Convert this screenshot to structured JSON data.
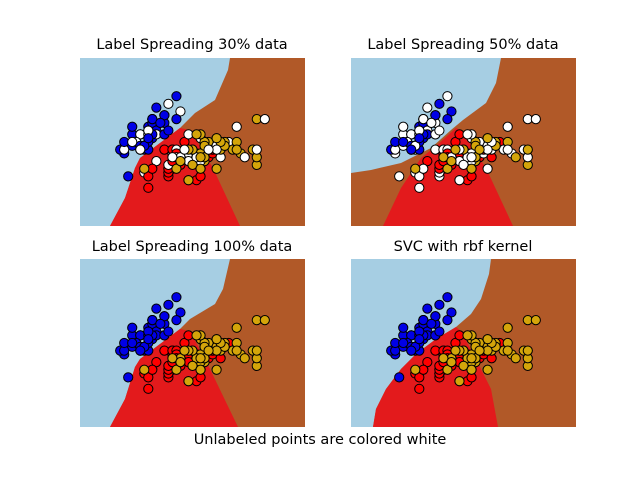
{
  "figure_caption": "Unlabeled points are colored white",
  "colors": {
    "region_class0": "#a6cee3",
    "region_class1": "#e31a1c",
    "region_class2": "#b15928",
    "point_class0": "#0000e6",
    "point_class1": "#ff0000",
    "point_class2": "#d4a50a",
    "unlabeled": "#ffffff"
  },
  "chart_data": [
    {
      "type": "scatter",
      "title": "Label Spreading 30% data",
      "unlabeled_fraction": 0.3,
      "xlim": [
        3.3,
        8.9
      ],
      "ylim": [
        1.0,
        5.4
      ],
      "grid": false,
      "axes_visible": false
    },
    {
      "type": "scatter",
      "title": "Label Spreading 50% data",
      "unlabeled_fraction": 0.5,
      "xlim": [
        3.3,
        8.9
      ],
      "ylim": [
        1.0,
        5.4
      ],
      "grid": false,
      "axes_visible": false
    },
    {
      "type": "scatter",
      "title": "Label Spreading 100% data",
      "unlabeled_fraction": 0.0,
      "xlim": [
        3.3,
        8.9
      ],
      "ylim": [
        1.0,
        5.4
      ],
      "grid": false,
      "axes_visible": false
    },
    {
      "type": "scatter",
      "title": "SVC with rbf kernel",
      "unlabeled_fraction": 0.0,
      "xlim": [
        3.3,
        8.9
      ],
      "ylim": [
        1.0,
        5.4
      ],
      "grid": false,
      "axes_visible": false
    }
  ],
  "points": {
    "class0": [
      [
        5.1,
        3.5
      ],
      [
        4.9,
        3.0
      ],
      [
        4.7,
        3.2
      ],
      [
        4.6,
        3.1
      ],
      [
        5.0,
        3.6
      ],
      [
        5.4,
        3.9
      ],
      [
        4.6,
        3.4
      ],
      [
        5.0,
        3.4
      ],
      [
        4.4,
        2.9
      ],
      [
        4.9,
        3.1
      ],
      [
        5.4,
        3.7
      ],
      [
        4.8,
        3.4
      ],
      [
        4.8,
        3.0
      ],
      [
        4.3,
        3.0
      ],
      [
        5.8,
        4.0
      ],
      [
        5.7,
        4.4
      ],
      [
        5.4,
        3.9
      ],
      [
        5.1,
        3.5
      ],
      [
        5.7,
        3.8
      ],
      [
        5.1,
        3.8
      ],
      [
        5.4,
        3.4
      ],
      [
        5.1,
        3.7
      ],
      [
        4.6,
        3.6
      ],
      [
        5.1,
        3.3
      ],
      [
        4.8,
        3.4
      ],
      [
        5.0,
        3.0
      ],
      [
        5.0,
        3.4
      ],
      [
        5.2,
        3.5
      ],
      [
        5.2,
        3.4
      ],
      [
        4.7,
        3.2
      ],
      [
        4.8,
        3.1
      ],
      [
        5.4,
        3.4
      ],
      [
        5.2,
        4.1
      ],
      [
        5.5,
        4.2
      ],
      [
        4.9,
        3.1
      ],
      [
        5.0,
        3.2
      ],
      [
        5.5,
        3.5
      ],
      [
        4.9,
        3.1
      ],
      [
        4.4,
        3.0
      ],
      [
        5.1,
        3.4
      ],
      [
        5.0,
        3.5
      ],
      [
        4.5,
        2.3
      ],
      [
        4.4,
        3.2
      ],
      [
        5.0,
        3.5
      ],
      [
        5.1,
        3.8
      ],
      [
        4.8,
        3.0
      ],
      [
        5.1,
        3.8
      ],
      [
        4.6,
        3.2
      ],
      [
        5.3,
        3.7
      ],
      [
        5.0,
        3.3
      ]
    ],
    "class1": [
      [
        7.0,
        3.2
      ],
      [
        6.4,
        3.2
      ],
      [
        6.9,
        3.1
      ],
      [
        5.5,
        2.3
      ],
      [
        6.5,
        2.8
      ],
      [
        5.7,
        2.8
      ],
      [
        6.3,
        3.3
      ],
      [
        4.9,
        2.4
      ],
      [
        6.6,
        2.9
      ],
      [
        5.2,
        2.7
      ],
      [
        5.0,
        2.0
      ],
      [
        5.9,
        3.0
      ],
      [
        6.0,
        2.2
      ],
      [
        6.1,
        2.9
      ],
      [
        5.6,
        2.9
      ],
      [
        6.7,
        3.1
      ],
      [
        5.6,
        3.0
      ],
      [
        5.8,
        2.7
      ],
      [
        6.2,
        2.2
      ],
      [
        5.6,
        2.5
      ],
      [
        5.9,
        3.2
      ],
      [
        6.1,
        2.8
      ],
      [
        6.3,
        2.5
      ],
      [
        6.1,
        2.8
      ],
      [
        6.4,
        2.9
      ],
      [
        6.6,
        3.0
      ],
      [
        6.8,
        2.8
      ],
      [
        6.7,
        3.0
      ],
      [
        6.0,
        2.9
      ],
      [
        5.7,
        2.6
      ],
      [
        5.5,
        2.4
      ],
      [
        5.5,
        2.4
      ],
      [
        5.8,
        2.7
      ],
      [
        6.0,
        2.7
      ],
      [
        5.4,
        3.0
      ],
      [
        6.0,
        3.4
      ],
      [
        6.7,
        3.1
      ],
      [
        6.3,
        2.3
      ],
      [
        5.6,
        3.0
      ],
      [
        5.5,
        2.5
      ],
      [
        5.5,
        2.6
      ],
      [
        6.1,
        3.0
      ],
      [
        5.8,
        2.6
      ],
      [
        5.0,
        2.3
      ],
      [
        5.6,
        2.7
      ],
      [
        5.7,
        3.0
      ],
      [
        5.7,
        2.9
      ],
      [
        6.2,
        2.9
      ],
      [
        5.1,
        2.5
      ],
      [
        5.7,
        2.8
      ]
    ],
    "class2": [
      [
        6.3,
        3.3
      ],
      [
        5.8,
        2.7
      ],
      [
        7.1,
        3.0
      ],
      [
        6.3,
        2.9
      ],
      [
        6.5,
        3.0
      ],
      [
        7.6,
        3.0
      ],
      [
        4.9,
        2.5
      ],
      [
        7.3,
        2.9
      ],
      [
        6.7,
        2.5
      ],
      [
        7.2,
        3.6
      ],
      [
        6.5,
        3.2
      ],
      [
        6.4,
        2.7
      ],
      [
        6.8,
        3.0
      ],
      [
        5.7,
        2.5
      ],
      [
        5.8,
        2.8
      ],
      [
        6.4,
        3.2
      ],
      [
        6.5,
        3.0
      ],
      [
        7.7,
        3.8
      ],
      [
        7.7,
        2.6
      ],
      [
        6.0,
        2.2
      ],
      [
        6.9,
        3.2
      ],
      [
        5.6,
        2.8
      ],
      [
        7.7,
        2.8
      ],
      [
        6.3,
        2.7
      ],
      [
        6.7,
        3.3
      ],
      [
        7.2,
        3.2
      ],
      [
        6.2,
        2.8
      ],
      [
        6.1,
        3.0
      ],
      [
        6.4,
        2.8
      ],
      [
        7.2,
        3.0
      ],
      [
        7.4,
        2.8
      ],
      [
        7.9,
        3.8
      ],
      [
        6.4,
        2.8
      ],
      [
        6.3,
        2.8
      ],
      [
        6.1,
        2.6
      ],
      [
        7.7,
        3.0
      ],
      [
        6.3,
        3.4
      ],
      [
        6.4,
        3.1
      ],
      [
        6.0,
        3.0
      ],
      [
        6.9,
        3.1
      ],
      [
        6.7,
        3.1
      ],
      [
        6.9,
        3.1
      ],
      [
        5.8,
        2.7
      ],
      [
        6.8,
        3.2
      ],
      [
        6.7,
        3.3
      ],
      [
        6.7,
        3.0
      ],
      [
        6.3,
        2.5
      ],
      [
        6.5,
        3.0
      ],
      [
        6.2,
        3.4
      ],
      [
        5.9,
        3.0
      ]
    ]
  }
}
